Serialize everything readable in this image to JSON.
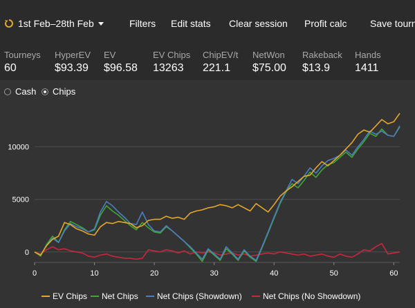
{
  "toolbar": {
    "date_range": "1st Feb–28th Feb",
    "items": [
      "Filters",
      "Edit stats",
      "Clear session",
      "Profit calc",
      "Save tourn"
    ]
  },
  "stats": [
    {
      "label": "Tourneys",
      "value": "60"
    },
    {
      "label": "HyperEV",
      "value": "$93.39"
    },
    {
      "label": "EV",
      "value": "$96.58"
    },
    {
      "label": "EV Chips",
      "value": "13263"
    },
    {
      "label": "ChipEV/t",
      "value": "221.1"
    },
    {
      "label": "NetWon",
      "value": "$75.00"
    },
    {
      "label": "Rakeback",
      "value": "$13.9"
    },
    {
      "label": "Hands",
      "value": "1411"
    }
  ],
  "modes": {
    "options": [
      "Cash",
      "Chips"
    ],
    "selected": "Chips"
  },
  "chart_data": {
    "type": "line",
    "xlim": [
      0,
      61
    ],
    "ylim": [
      -1000,
      13200
    ],
    "xticks": [
      0,
      10,
      20,
      30,
      40,
      50,
      60
    ],
    "yticks": [
      0,
      5000,
      10000
    ],
    "grid": true,
    "legend_placement": "bottom",
    "series": [
      {
        "name": "EV Chips",
        "color": "#e5a82b",
        "x": [
          0,
          1,
          2,
          3,
          4,
          5,
          6,
          7,
          8,
          9,
          10,
          11,
          12,
          13,
          14,
          15,
          16,
          17,
          18,
          19,
          20,
          21,
          22,
          23,
          24,
          25,
          26,
          27,
          28,
          29,
          30,
          31,
          32,
          33,
          34,
          35,
          36,
          37,
          38,
          39,
          40,
          41,
          42,
          43,
          44,
          45,
          46,
          47,
          48,
          49,
          50,
          51,
          52,
          53,
          54,
          55,
          56,
          57,
          58,
          59,
          60,
          61
        ],
        "y": [
          0,
          -300,
          600,
          1200,
          1500,
          2800,
          2600,
          2200,
          2000,
          1700,
          1600,
          2400,
          2800,
          2700,
          2900,
          2800,
          2700,
          2300,
          2500,
          3000,
          3100,
          3100,
          3400,
          3200,
          3300,
          3100,
          3700,
          3900,
          4000,
          4200,
          4300,
          4500,
          4400,
          4200,
          4500,
          4200,
          3900,
          4600,
          4200,
          3800,
          4500,
          5300,
          5800,
          6200,
          6700,
          7200,
          7300,
          8000,
          8600,
          8200,
          8700,
          9200,
          9800,
          10400,
          11200,
          11600,
          11400,
          12000,
          12600,
          12200,
          12400,
          13200
        ]
      },
      {
        "name": "Net Chips",
        "color": "#3fa832",
        "x": [
          0,
          1,
          2,
          3,
          4,
          5,
          6,
          7,
          8,
          9,
          10,
          11,
          12,
          13,
          14,
          15,
          16,
          17,
          18,
          19,
          20,
          21,
          22,
          23,
          24,
          25,
          26,
          27,
          28,
          29,
          30,
          31,
          32,
          33,
          34,
          35,
          36,
          37,
          38,
          39,
          40,
          41,
          42,
          43,
          44,
          45,
          46,
          47,
          48,
          49,
          50,
          51,
          52,
          53,
          54,
          55,
          56,
          57,
          58,
          59,
          60,
          61
        ],
        "y": [
          0,
          -400,
          700,
          1500,
          900,
          2100,
          2900,
          2600,
          2300,
          1900,
          2100,
          3500,
          4400,
          3900,
          3500,
          3000,
          2500,
          2100,
          2800,
          2300,
          1900,
          1800,
          2400,
          2000,
          1500,
          1000,
          400,
          -200,
          -900,
          200,
          -300,
          -800,
          300,
          -200,
          -800,
          100,
          -500,
          -900,
          400,
          1800,
          3200,
          4600,
          5700,
          6500,
          6100,
          6800,
          7600,
          7100,
          7800,
          8300,
          8500,
          9000,
          9500,
          9000,
          9800,
          10500,
          11300,
          11000,
          11700,
          11100,
          11000,
          11900
        ]
      },
      {
        "name": "Net Chips (Showdown)",
        "color": "#4c7ec4",
        "x": [
          0,
          1,
          2,
          3,
          4,
          5,
          6,
          7,
          8,
          9,
          10,
          11,
          12,
          13,
          14,
          15,
          16,
          17,
          18,
          19,
          20,
          21,
          22,
          23,
          24,
          25,
          26,
          27,
          28,
          29,
          30,
          31,
          32,
          33,
          34,
          35,
          36,
          37,
          38,
          39,
          40,
          41,
          42,
          43,
          44,
          45,
          46,
          47,
          48,
          49,
          50,
          51,
          52,
          53,
          54,
          55,
          56,
          57,
          58,
          59,
          60,
          61
        ],
        "y": [
          0,
          -300,
          600,
          1300,
          900,
          2000,
          2700,
          2400,
          2200,
          1900,
          2200,
          3800,
          4800,
          4400,
          3800,
          3300,
          2700,
          2600,
          3800,
          2600,
          2000,
          1900,
          2500,
          2000,
          1500,
          1000,
          500,
          -100,
          -700,
          300,
          -200,
          -700,
          500,
          -100,
          -700,
          200,
          -400,
          -800,
          500,
          1900,
          3300,
          4700,
          5800,
          6900,
          6500,
          7200,
          8000,
          7500,
          8200,
          8700,
          8900,
          9200,
          9700,
          9200,
          10000,
          10700,
          11500,
          11200,
          11500,
          11100,
          11000,
          12000
        ]
      },
      {
        "name": "Net Chips (No Showdown)",
        "color": "#c8283c",
        "x": [
          0,
          1,
          2,
          3,
          4,
          5,
          6,
          7,
          8,
          9,
          10,
          11,
          12,
          13,
          14,
          15,
          16,
          17,
          18,
          19,
          20,
          21,
          22,
          23,
          24,
          25,
          26,
          27,
          28,
          29,
          30,
          31,
          32,
          33,
          34,
          35,
          36,
          37,
          38,
          39,
          40,
          41,
          42,
          43,
          44,
          45,
          46,
          47,
          48,
          49,
          50,
          51,
          52,
          53,
          54,
          55,
          56,
          57,
          58,
          59,
          60,
          61
        ],
        "y": [
          0,
          -200,
          200,
          500,
          200,
          300,
          100,
          0,
          -100,
          -400,
          -500,
          -300,
          -200,
          -400,
          -500,
          -600,
          -600,
          -700,
          -600,
          200,
          100,
          0,
          200,
          100,
          -100,
          100,
          -200,
          0,
          -100,
          0,
          -100,
          -300,
          -200,
          -100,
          -300,
          -200,
          -400,
          -300,
          -200,
          -100,
          -200,
          0,
          -100,
          -200,
          -300,
          -200,
          -400,
          -300,
          -200,
          -400,
          -500,
          -200,
          -400,
          -500,
          -200,
          200,
          100,
          500,
          800,
          -200,
          -100,
          0
        ]
      }
    ]
  }
}
